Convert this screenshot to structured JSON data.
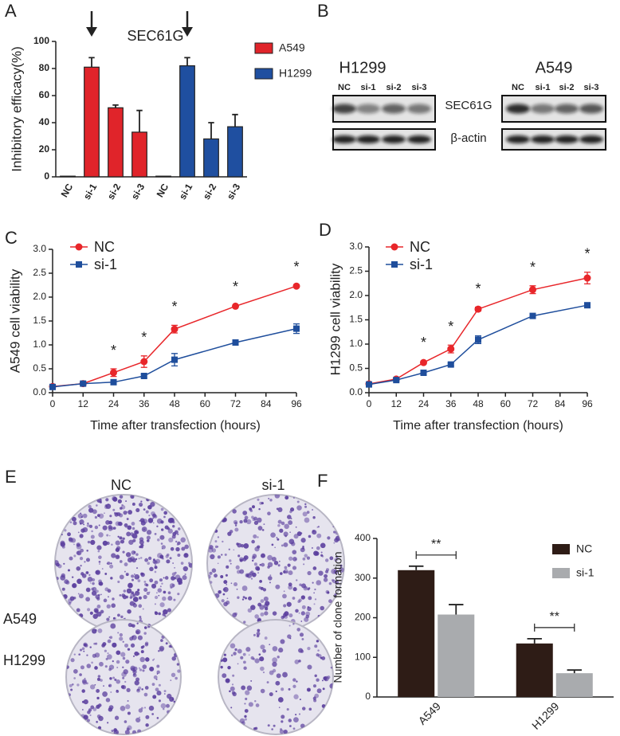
{
  "blot": {
    "panel": "B",
    "proteins": [
      "SEC61G",
      "β-actin"
    ],
    "blots": [
      {
        "cell_line": "H1299",
        "lanes": [
          "NC",
          "si-1",
          "si-2",
          "si-3"
        ]
      },
      {
        "cell_line": "A549",
        "lanes": [
          "NC",
          "si-1",
          "si-2",
          "si-3"
        ]
      }
    ]
  },
  "colony": {
    "panel": "E",
    "columns": [
      "NC",
      "si-1"
    ],
    "rows": [
      "A549",
      "H1299"
    ]
  },
  "chart_data": [
    {
      "type": "bar",
      "panel": "A",
      "title": "SEC61G",
      "y_label": "Inhibitory efficacy(%)",
      "categories": [
        "NC",
        "si-1",
        "si-2",
        "si-3",
        "NC",
        "si-1",
        "si-2",
        "si-3"
      ],
      "series": [
        {
          "name": "A549",
          "color": "#e0242a",
          "values": [
            0.5,
            81,
            51,
            33,
            null,
            null,
            null,
            null
          ],
          "errors": [
            null,
            7,
            2,
            16,
            null,
            null,
            null,
            null
          ]
        },
        {
          "name": "H1299",
          "color": "#1f4fa0",
          "values": [
            null,
            null,
            null,
            null,
            0.5,
            82,
            28,
            37
          ],
          "errors": [
            null,
            null,
            null,
            null,
            null,
            6,
            12,
            9
          ]
        }
      ],
      "ylim": [
        0,
        100
      ],
      "yticks": [
        0,
        20,
        40,
        60,
        80,
        100
      ]
    },
    {
      "type": "line",
      "panel": "C",
      "x_label": "Time after transfection (hours)",
      "y_label": "A549 cell viability",
      "x": [
        0,
        12,
        24,
        36,
        48,
        72,
        96
      ],
      "series": [
        {
          "name": "NC",
          "color": "#e8262a",
          "values": [
            0.13,
            0.19,
            0.42,
            0.65,
            1.33,
            1.81,
            2.23
          ],
          "errors": [
            0.03,
            0.03,
            0.08,
            0.12,
            0.08,
            0.02,
            0.02
          ]
        },
        {
          "name": "si-1",
          "color": "#1f4e9c",
          "values": [
            0.12,
            0.19,
            0.22,
            0.35,
            0.69,
            1.05,
            1.34
          ],
          "errors": [
            0.02,
            0.03,
            0.03,
            0.04,
            0.13,
            0.03,
            0.1
          ]
        }
      ],
      "annotations": [
        null,
        null,
        "*",
        "*",
        "*",
        "*",
        "*"
      ],
      "xlim": [
        0,
        96
      ],
      "xticks": [
        0,
        12,
        24,
        36,
        48,
        60,
        72,
        84,
        96
      ],
      "ylim": [
        0,
        3
      ],
      "yticks": [
        {
          "value": 0,
          "label": "0.0"
        },
        0.5,
        {
          "value": 1,
          "label": "1.0"
        },
        1.5,
        {
          "value": 2,
          "label": "2.0"
        },
        2.5,
        {
          "value": 3,
          "label": "3.0"
        }
      ]
    },
    {
      "type": "line",
      "panel": "D",
      "x_label": "Time after transfection (hours)",
      "y_label": "H1299 cell viability",
      "x": [
        0,
        12,
        24,
        36,
        48,
        72,
        96
      ],
      "series": [
        {
          "name": "NC",
          "color": "#e8262a",
          "values": [
            0.18,
            0.28,
            0.62,
            0.9,
            1.72,
            2.12,
            2.36
          ],
          "errors": [
            0.02,
            0.02,
            0.03,
            0.08,
            0.04,
            0.08,
            0.12
          ]
        },
        {
          "name": "si-1",
          "color": "#1f4e9c",
          "values": [
            0.17,
            0.26,
            0.41,
            0.58,
            1.09,
            1.58,
            1.8
          ],
          "errors": [
            0.02,
            0.02,
            0.03,
            0.03,
            0.08,
            0.03,
            0.02
          ]
        }
      ],
      "annotations": [
        null,
        null,
        "*",
        "*",
        "*",
        "*",
        "*"
      ],
      "xlim": [
        0,
        96
      ],
      "xticks": [
        0,
        12,
        24,
        36,
        48,
        60,
        72,
        84,
        96
      ],
      "ylim": [
        0,
        3
      ],
      "yticks": [
        {
          "value": 0,
          "label": "0.0"
        },
        0.5,
        {
          "value": 1,
          "label": "1.0"
        },
        1.5,
        {
          "value": 2,
          "label": "2.0"
        },
        2.5,
        {
          "value": 3,
          "label": "3.0"
        }
      ]
    },
    {
      "type": "bar",
      "panel": "F",
      "y_label": "Number of clone formation",
      "categories": [
        "A549",
        "H1299"
      ],
      "series": [
        {
          "name": "NC",
          "color": "#2e1c16",
          "values": [
            320,
            135
          ],
          "errors": [
            10,
            12
          ]
        },
        {
          "name": "si-1",
          "color": "#a9abae",
          "values": [
            208,
            60
          ],
          "errors": [
            25,
            8
          ]
        }
      ],
      "annotations": [
        "**",
        "**"
      ],
      "ylim": [
        0,
        400
      ],
      "yticks": [
        0,
        100,
        200,
        300,
        400
      ]
    }
  ]
}
